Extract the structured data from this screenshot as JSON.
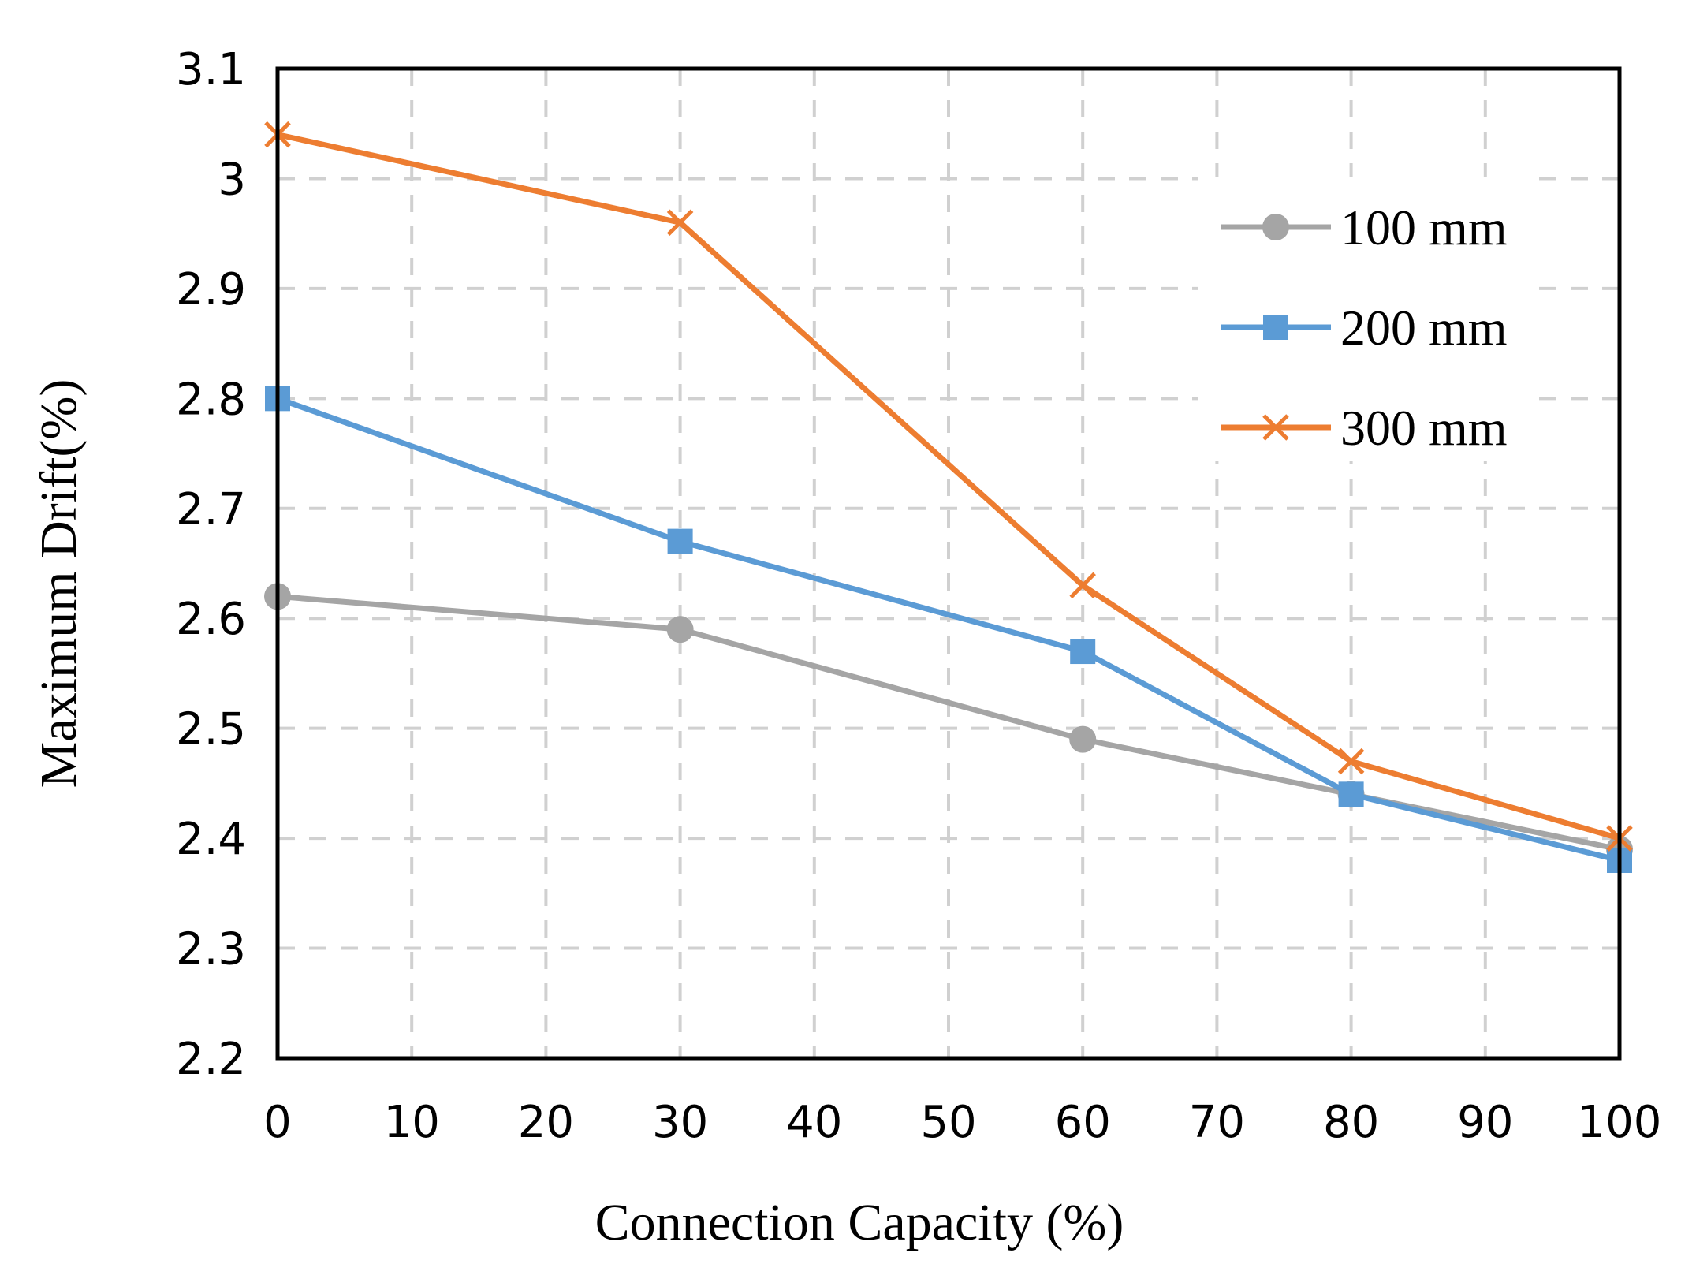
{
  "chart_data": {
    "type": "line",
    "title": "",
    "xlabel": "Connection Capacity (%)",
    "ylabel": "Maximum Drift(%)",
    "xlim": [
      0,
      100
    ],
    "ylim": [
      2.2,
      3.1
    ],
    "x_ticks": [
      0,
      10,
      20,
      30,
      40,
      50,
      60,
      70,
      80,
      90,
      100
    ],
    "x_tick_labels": [
      "0",
      "10",
      "20",
      "30",
      "40",
      "50",
      "60",
      "70",
      "80",
      "90",
      "100"
    ],
    "y_ticks": [
      2.2,
      2.3,
      2.4,
      2.5,
      2.6,
      2.7,
      2.8,
      2.9,
      3.0,
      3.1
    ],
    "y_tick_labels": [
      "2.2",
      "2.3",
      "2.4",
      "2.5",
      "2.6",
      "2.7",
      "2.8",
      "2.9",
      "3",
      "3.1"
    ],
    "grid": true,
    "legend_position": "top-right",
    "x": [
      0,
      30,
      60,
      80,
      100
    ],
    "series": [
      {
        "name": "100 mm",
        "values": [
          2.62,
          2.59,
          2.49,
          2.44,
          2.39
        ],
        "color": "#a5a5a5",
        "marker": "circle"
      },
      {
        "name": "200 mm",
        "values": [
          2.8,
          2.67,
          2.57,
          2.44,
          2.38
        ],
        "color": "#5b9bd5",
        "marker": "square"
      },
      {
        "name": "300 mm",
        "values": [
          3.04,
          2.96,
          2.63,
          2.47,
          2.4
        ],
        "color": "#ed7d31",
        "marker": "x"
      }
    ]
  }
}
